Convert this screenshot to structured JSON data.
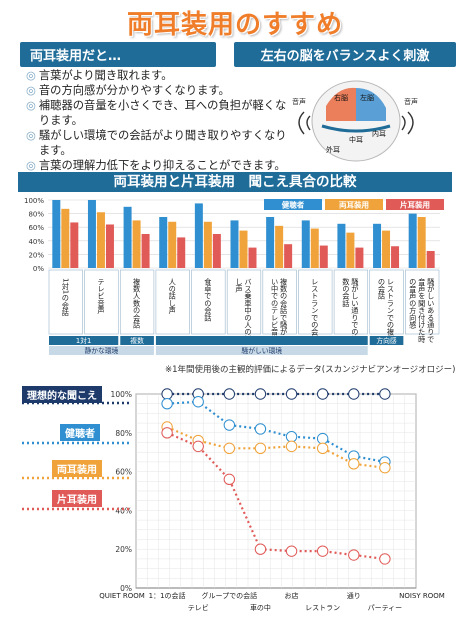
{
  "title": "両耳装用のすすめ",
  "left_header": "両耳装用だと…",
  "right_header": "左右の脳をバランスよく刺激",
  "bullets": [
    "言葉がより聞き取れます。",
    "音の方向感が分かりやすくなります。",
    "補聴器の音量を小さくでき、耳への負担が軽くなります。",
    "騒がしい環境での会話がより聞き取りやすくなります。",
    "言葉の理解力低下をより抑えることができます。"
  ],
  "brain": {
    "label_left_sound": "音声",
    "label_right_sound": "音声",
    "label_right_brain": "右脳",
    "label_left_brain": "左脳",
    "label_middle_ear": "中耳",
    "label_inner_ear": "内耳",
    "label_outer_ear": "外耳"
  },
  "section_title": "両耳装用と片耳装用　聞こえ具合の比較",
  "bar_chart_note": "※1年間使用後の主観的評価によるデータ(スカンジナビアンオージオロジー)",
  "env_groups": [
    {
      "label": "1対1",
      "span": [
        0,
        1
      ]
    },
    {
      "label": "複数",
      "span": [
        2,
        2
      ]
    },
    {
      "label": "",
      "span": [
        3,
        8
      ]
    },
    {
      "label": "方向感",
      "span": [
        9,
        9
      ]
    }
  ],
  "env_groups2": [
    {
      "label": "静かな環境",
      "span": [
        0,
        2
      ]
    },
    {
      "label": "騒がしい環境",
      "span": [
        3,
        8
      ]
    }
  ],
  "line_legend": [
    "理想的な聞こえ",
    "健聴者",
    "両耳装用",
    "片耳装用"
  ],
  "chart_data": [
    {
      "type": "bar",
      "categories": [
        "1対1の会話",
        "テレビ音声",
        "複数人数の会話",
        "人の話し声",
        "食卓での会話",
        "バス乗車中の人の話し声",
        "複数の会話で騒がしい中でのテレビ音声",
        "レストランでの会話",
        "騒がしい通りでの複数の会話",
        "レストランでの複数の会話",
        "騒がしいある通りで音声を聞き付けた時の音声の方向感"
      ],
      "series": [
        {
          "name": "健聴者",
          "color": "#2f8fd0",
          "values": [
            100,
            100,
            90,
            75,
            95,
            70,
            75,
            70,
            65,
            65,
            80
          ]
        },
        {
          "name": "両耳装用",
          "color": "#f0a33a",
          "values": [
            87,
            82,
            70,
            68,
            68,
            55,
            62,
            58,
            52,
            55,
            75
          ]
        },
        {
          "name": "片耳装用",
          "color": "#e05a58",
          "values": [
            67,
            64,
            50,
            45,
            50,
            30,
            35,
            33,
            30,
            32,
            25
          ]
        }
      ],
      "y_ticks": [
        "100%",
        "80%",
        "60%",
        "40%",
        "20%",
        "0%"
      ],
      "ylim": [
        0,
        100
      ],
      "legend": "top-right"
    },
    {
      "type": "line",
      "categories_bottom": [
        "QUIET ROOM",
        "1：1の会話",
        "テレビ",
        "グループでの会話",
        "車の中",
        "お店",
        "レストラン",
        "通り",
        "パーティー",
        "NOISY ROOM"
      ],
      "x_points": [
        "1：1の会話",
        "テレビ",
        "グループでの会話",
        "車の中",
        "お店",
        "レストラン",
        "通り",
        "パーティー"
      ],
      "series": [
        {
          "name": "理想的な聞こえ",
          "color": "#1d3a6b",
          "values": [
            100,
            100,
            100,
            100,
            100,
            100,
            100,
            100
          ]
        },
        {
          "name": "健聴者",
          "color": "#2f8fd0",
          "values": [
            95,
            96,
            84,
            82,
            78,
            77,
            68,
            65
          ]
        },
        {
          "name": "両耳装用",
          "color": "#f0a33a",
          "values": [
            83,
            76,
            72,
            72,
            73,
            72,
            64,
            62
          ]
        },
        {
          "name": "片耳装用",
          "color": "#e05a58",
          "values": [
            80,
            73,
            56,
            20,
            19,
            19,
            17,
            15
          ]
        }
      ],
      "y_ticks": [
        "100%",
        "80%",
        "60%",
        "40%",
        "20%",
        "0%"
      ],
      "ylim": [
        0,
        100
      ],
      "legend": "left"
    }
  ]
}
